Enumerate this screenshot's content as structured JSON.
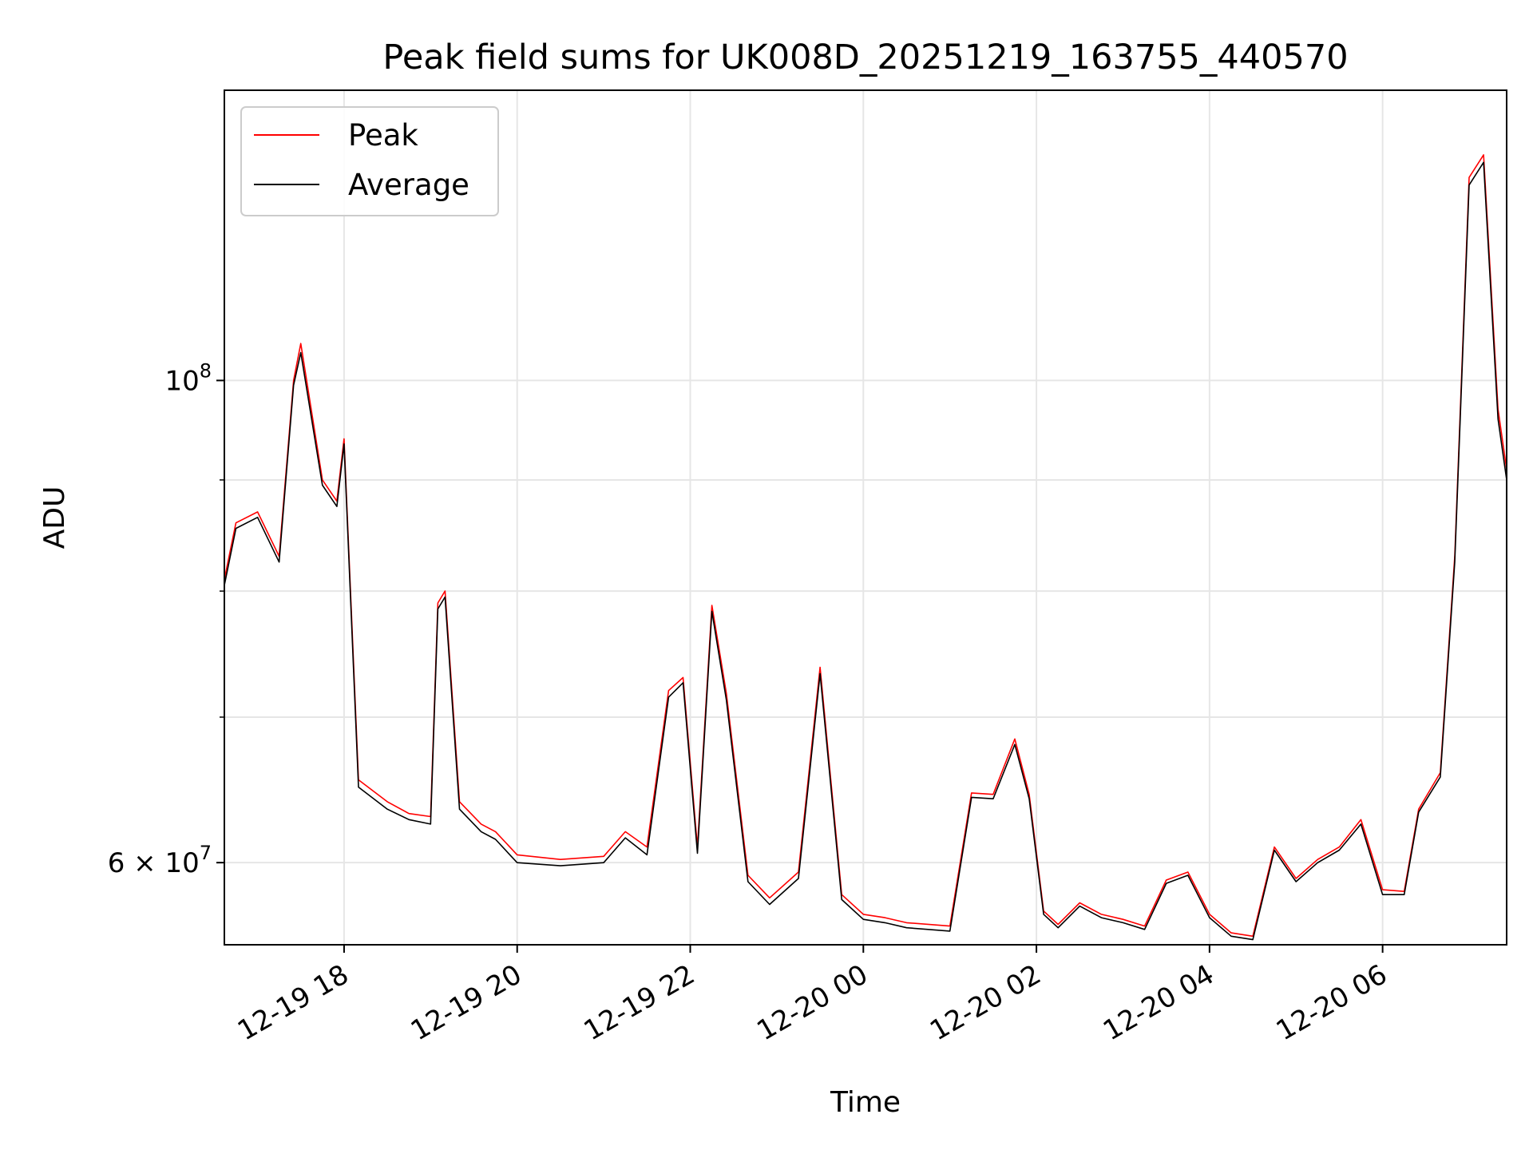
{
  "chart_data": {
    "type": "line",
    "title": "Peak field sums for UK008D_20251219_163755_440570",
    "xlabel": "Time",
    "ylabel": "ADU",
    "yscale": "log",
    "xlim": [
      "12-19 16:37",
      "12-20 07:26"
    ],
    "ylim": [
      55000000,
      136000000
    ],
    "x_ticks": [
      "12-19 18",
      "12-19 20",
      "12-19 22",
      "12-20 00",
      "12-20 02",
      "12-20 04",
      "12-20 06"
    ],
    "y_tick_labels": {
      "major": [
        "10^8",
        "6×10^7"
      ]
    },
    "grid": true,
    "legend": {
      "placement": "top-left",
      "entries": [
        "Peak",
        "Average"
      ]
    },
    "colors": {
      "peak": "#ff0000",
      "average": "#000000"
    },
    "x": [
      "16:37",
      "16:45",
      "17:00",
      "17:15",
      "17:25",
      "17:30",
      "17:45",
      "17:55",
      "18:00",
      "18:10",
      "18:30",
      "18:45",
      "19:00",
      "19:05",
      "19:10",
      "19:20",
      "19:35",
      "19:45",
      "20:00",
      "20:30",
      "21:00",
      "21:15",
      "21:30",
      "21:45",
      "21:55",
      "22:05",
      "22:15",
      "22:25",
      "22:40",
      "22:55",
      "23:15",
      "23:30",
      "23:45",
      "00:00",
      "00:15",
      "00:30",
      "01:00",
      "01:15",
      "01:30",
      "01:45",
      "01:55",
      "02:05",
      "02:15",
      "02:30",
      "02:45",
      "03:00",
      "03:15",
      "03:30",
      "03:45",
      "04:00",
      "04:15",
      "04:30",
      "04:45",
      "05:00",
      "05:15",
      "05:30",
      "05:45",
      "06:00",
      "06:15",
      "06:25",
      "06:40",
      "06:50",
      "07:00",
      "07:10",
      "07:20",
      "07:26"
    ],
    "series": [
      {
        "name": "Peak",
        "values": [
          81000000,
          86000000,
          87000000,
          83000000,
          100000000,
          104000000,
          90000000,
          88000000,
          94000000,
          65500000,
          64000000,
          63200000,
          63000000,
          79000000,
          80000000,
          64000000,
          62500000,
          62000000,
          60500000,
          60200000,
          60400000,
          62000000,
          61000000,
          72000000,
          73000000,
          61000000,
          78800000,
          71800000,
          59200000,
          57800000,
          59400000,
          73800000,
          58000000,
          56800000,
          56600000,
          56300000,
          56100000,
          64600000,
          64500000,
          68400000,
          64500000,
          57000000,
          56200000,
          57500000,
          56800000,
          56500000,
          56100000,
          58900000,
          59400000,
          56800000,
          55700000,
          55500000,
          61000000,
          59000000,
          60200000,
          61000000,
          62800000,
          58300000,
          58200000,
          63500000,
          66000000,
          83000000,
          124000000,
          127000000,
          97000000,
          91000000
        ]
      },
      {
        "name": "Average",
        "values": [
          80500000,
          85500000,
          86500000,
          82500000,
          99500000,
          103000000,
          89500000,
          87500000,
          93500000,
          65000000,
          63500000,
          62800000,
          62500000,
          78500000,
          79500000,
          63500000,
          62000000,
          61500000,
          60000000,
          59800000,
          60000000,
          61600000,
          60500000,
          71500000,
          72600000,
          60600000,
          78300000,
          71300000,
          58800000,
          57400000,
          59000000,
          73300000,
          57700000,
          56500000,
          56300000,
          56000000,
          55800000,
          64300000,
          64200000,
          68000000,
          64200000,
          56800000,
          56000000,
          57300000,
          56600000,
          56300000,
          55900000,
          58700000,
          59200000,
          56600000,
          55500000,
          55300000,
          60800000,
          58800000,
          60000000,
          60800000,
          62500000,
          58000000,
          58000000,
          63300000,
          65700000,
          82500000,
          123000000,
          126000000,
          96000000,
          90000000
        ]
      }
    ]
  }
}
